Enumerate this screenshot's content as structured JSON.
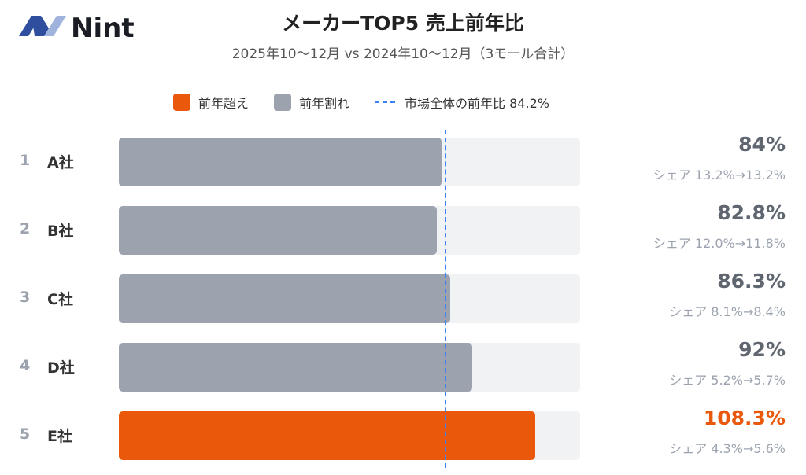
{
  "logo": {
    "text": "Nint"
  },
  "header": {
    "title": "メーカーTOP5 売上前年比",
    "subtitle": "2025年10〜12月 vs 2024年10〜12月（3モール合計）"
  },
  "legend": {
    "up": "前年超え",
    "down": "前年割れ",
    "market": "市場全体の前年比 84.2%"
  },
  "colors": {
    "up": "#ea580c",
    "down": "#9ca3af",
    "market": "#3b82f6",
    "track": "#f1f2f4"
  },
  "chart_data": {
    "type": "bar",
    "orientation": "horizontal",
    "title": "メーカーTOP5 売上前年比",
    "xlim": [
      0,
      120
    ],
    "market_reference": 84.2,
    "rows": [
      {
        "rank": "1",
        "name": "A社",
        "value": 84,
        "value_label": "84%",
        "share": "シェア 13.2%→13.2%"
      },
      {
        "rank": "2",
        "name": "B社",
        "value": 82.8,
        "value_label": "82.8%",
        "share": "シェア 12.0%→11.8%"
      },
      {
        "rank": "3",
        "name": "C社",
        "value": 86.3,
        "value_label": "86.3%",
        "share": "シェア 8.1%→8.4%"
      },
      {
        "rank": "4",
        "name": "D社",
        "value": 92,
        "value_label": "92%",
        "share": "シェア 5.2%→5.7%"
      },
      {
        "rank": "5",
        "name": "E社",
        "value": 108.3,
        "value_label": "108.3%",
        "share": "シェア 4.3%→5.6%"
      }
    ]
  }
}
